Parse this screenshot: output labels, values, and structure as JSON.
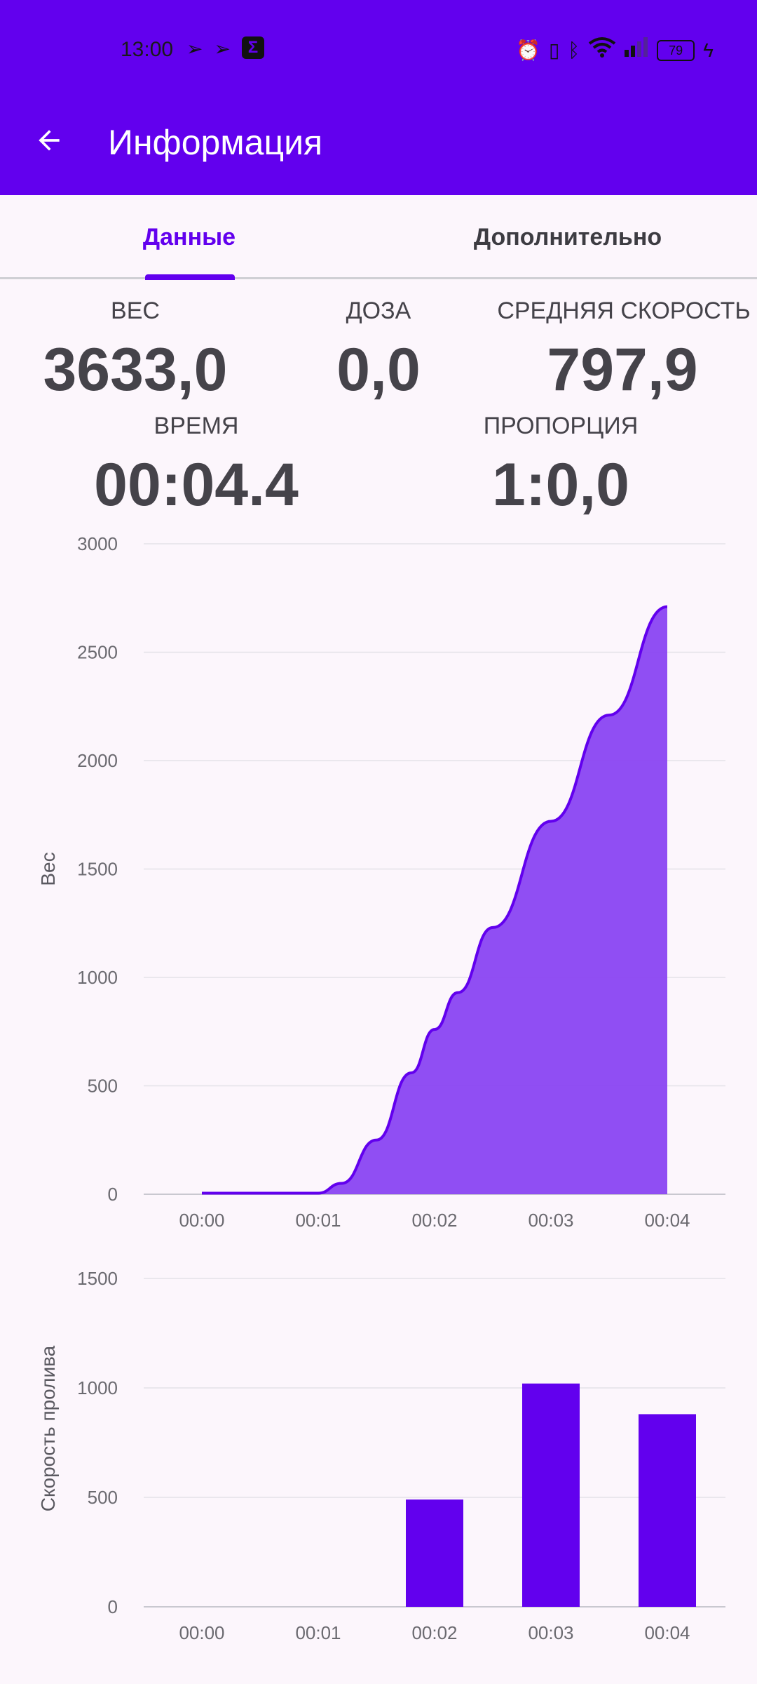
{
  "status_bar": {
    "time": "13:00",
    "battery": "79",
    "icons_left": [
      "telegram-icon",
      "telegram-icon",
      "sigma-app-icon"
    ],
    "icons_right": [
      "alarm-icon",
      "vibrate-icon",
      "bluetooth-icon",
      "wifi-icon",
      "signal-icon",
      "battery-icon",
      "charging-icon"
    ]
  },
  "app_bar": {
    "title": "Информация",
    "back_icon": "arrow-back-icon",
    "background": "#6200EE"
  },
  "tabs": [
    {
      "label": "Данные",
      "selected": true
    },
    {
      "label": "Дополнительно",
      "selected": false
    }
  ],
  "stats": {
    "weight": {
      "label": "ВЕС",
      "value": "3633,0"
    },
    "dose": {
      "label": "ДОЗА",
      "value": "0,0"
    },
    "avg_speed": {
      "label": "СРЕДНЯЯ СКОРОСТЬ",
      "value": "797,9"
    },
    "time": {
      "label": "ВРЕМЯ",
      "value": "00:04.4"
    },
    "ratio": {
      "label": "ПРОПОРЦИЯ",
      "value": "1:0,0"
    }
  },
  "chart_data": [
    {
      "type": "area",
      "ylabel": "Вес",
      "xlabel": "",
      "ylim": [
        0,
        3000
      ],
      "yticks": [
        "0",
        "500",
        "1000",
        "1500",
        "2000",
        "2500",
        "3000"
      ],
      "xticks": [
        "00:00",
        "00:01",
        "00:02",
        "00:03",
        "00:04"
      ],
      "x": [
        0.0,
        0.5,
        1.0,
        1.2,
        1.5,
        1.8,
        2.0,
        2.2,
        2.5,
        3.0,
        3.5,
        4.0
      ],
      "values": [
        5,
        5,
        5,
        50,
        250,
        560,
        760,
        930,
        1230,
        1720,
        2210,
        2710
      ],
      "color": "#6200EE",
      "fill": "#8A44F2",
      "grid": true
    },
    {
      "type": "bar",
      "ylabel": "Скорость пролива",
      "xlabel": "",
      "ylim": [
        0,
        1500
      ],
      "yticks": [
        "0",
        "500",
        "1000",
        "1500"
      ],
      "categories": [
        "00:00",
        "00:01",
        "00:02",
        "00:03",
        "00:04"
      ],
      "values": [
        0,
        0,
        490,
        1020,
        880
      ],
      "color": "#6200EE",
      "grid": true
    }
  ]
}
